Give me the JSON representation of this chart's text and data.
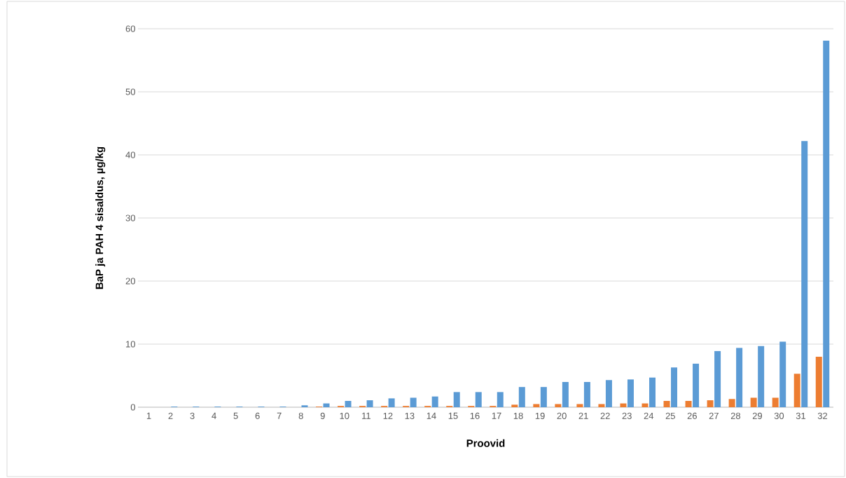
{
  "chart_data": {
    "type": "bar",
    "xlabel": "Proovid",
    "ylabel": "BaP ja PAH 4 sisaldus, µg/kg",
    "categories": [
      "1",
      "2",
      "3",
      "4",
      "5",
      "6",
      "7",
      "8",
      "9",
      "10",
      "11",
      "12",
      "13",
      "14",
      "15",
      "16",
      "17",
      "18",
      "19",
      "20",
      "21",
      "22",
      "23",
      "24",
      "25",
      "26",
      "27",
      "28",
      "29",
      "30",
      "31",
      "32"
    ],
    "series": [
      {
        "color": "#ed7d31",
        "values": [
          0,
          0,
          0,
          0,
          0,
          0,
          0,
          0,
          0.1,
          0.2,
          0.2,
          0.2,
          0.2,
          0.2,
          0.2,
          0.2,
          0.2,
          0.4,
          0.5,
          0.5,
          0.5,
          0.5,
          0.6,
          0.6,
          1.0,
          1.0,
          1.1,
          1.3,
          1.5,
          1.5,
          5.3,
          8.0
        ]
      },
      {
        "color": "#5b9bd5",
        "values": [
          0,
          0.1,
          0.1,
          0.1,
          0.1,
          0.1,
          0.1,
          0.3,
          0.6,
          1.0,
          1.1,
          1.4,
          1.5,
          1.7,
          2.4,
          2.4,
          2.4,
          3.2,
          3.2,
          4.0,
          4.0,
          4.3,
          4.4,
          4.7,
          6.3,
          6.9,
          8.9,
          9.4,
          9.7,
          10.4,
          42.2,
          58.1
        ]
      }
    ],
    "ylim": [
      0,
      60
    ],
    "yticks": [
      0,
      10,
      20,
      30,
      40,
      50,
      60
    ],
    "grid": "y"
  }
}
